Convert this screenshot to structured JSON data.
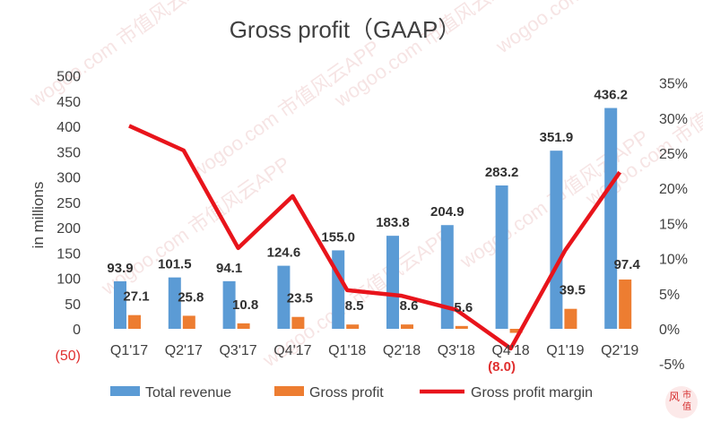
{
  "colors": {
    "revenue": "#5b9bd5",
    "gross_profit": "#ed7d31",
    "margin": "#e8141b",
    "negative_label": "#e03030"
  },
  "chart_data": {
    "type": "bar",
    "title": "Gross profit（GAAP）",
    "ylabel": "in millions",
    "xlabel": "",
    "categories": [
      "Q1'17",
      "Q2'17",
      "Q3'17",
      "Q4'17",
      "Q1'18",
      "Q2'18",
      "Q3'18",
      "Q4'18",
      "Q1'19",
      "Q2'19"
    ],
    "series": [
      {
        "name": "Total revenue",
        "type": "bar",
        "axis": "left",
        "values": [
          93.9,
          101.5,
          94.1,
          124.6,
          155.0,
          183.8,
          204.9,
          283.2,
          351.9,
          436.2
        ],
        "labels": [
          "93.9",
          "101.5",
          "94.1",
          "124.6",
          "155.0",
          "183.8",
          "204.9",
          "283.2",
          "351.9",
          "436.2"
        ]
      },
      {
        "name": "Gross profit",
        "type": "bar",
        "axis": "left",
        "values": [
          27.1,
          25.8,
          10.8,
          23.5,
          8.5,
          8.6,
          5.6,
          -8.0,
          39.5,
          97.4
        ],
        "labels": [
          "27.1",
          "25.8",
          "10.8",
          "23.5",
          "8.5",
          "8.6",
          "5.6",
          "(8.0)",
          "39.5",
          "97.4"
        ]
      },
      {
        "name": "Gross profit margin",
        "type": "line",
        "axis": "right",
        "values": [
          28.9,
          25.4,
          11.5,
          18.9,
          5.5,
          4.7,
          2.7,
          -2.8,
          11.2,
          22.3
        ]
      }
    ],
    "left_axis": {
      "ylim": [
        -50,
        500
      ],
      "ticks": [
        -50,
        0,
        50,
        100,
        150,
        200,
        250,
        300,
        350,
        400,
        450,
        500
      ],
      "tick_labels": [
        "(50)",
        "0",
        "50",
        "100",
        "150",
        "200",
        "250",
        "300",
        "350",
        "400",
        "450",
        "500"
      ]
    },
    "right_axis": {
      "ylim": [
        -5,
        35
      ],
      "ticks": [
        -5,
        0,
        5,
        10,
        15,
        20,
        25,
        30,
        35
      ],
      "tick_labels": [
        "-5%",
        "0%",
        "5%",
        "10%",
        "15%",
        "20%",
        "25%",
        "30%",
        "35%"
      ]
    },
    "grid": false,
    "legend_position": "bottom"
  },
  "watermark_text": "wogoo.com 市值风云APP",
  "logo_text": [
    "风",
    "市",
    "值"
  ]
}
